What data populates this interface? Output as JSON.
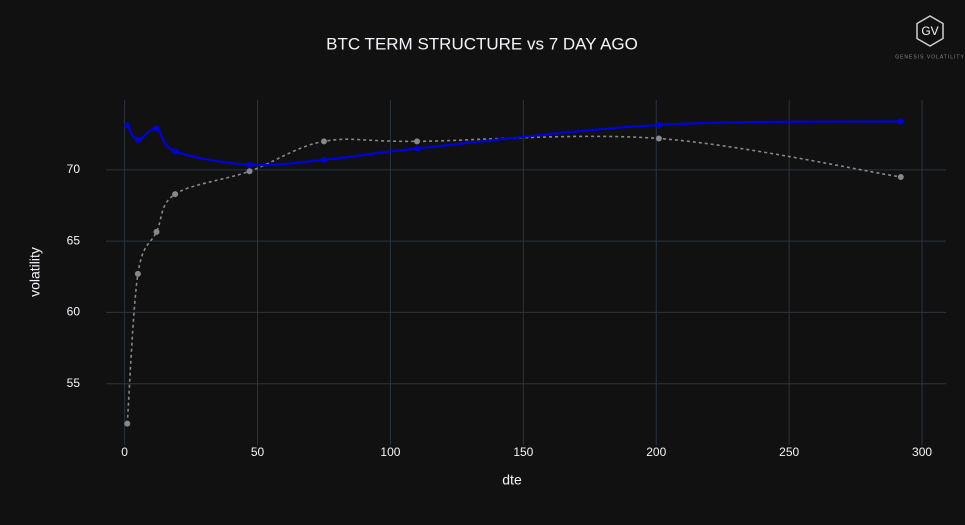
{
  "chart_data": {
    "type": "line",
    "title": "BTC TERM STRUCTURE vs 7 DAY AGO",
    "x_label": "dte",
    "y_label": "volatility",
    "logo": {
      "mark": "GV",
      "text": "GENESIS VOLATILITY"
    },
    "xlim": [
      -7,
      309
    ],
    "ylim": [
      50.7,
      74.9
    ],
    "xticks": [
      0,
      50,
      100,
      150,
      200,
      250,
      300
    ],
    "yticks": [
      55,
      60,
      65,
      70
    ],
    "grid": true,
    "smooth": true,
    "series": [
      {
        "color": "#0000dd",
        "dash": false,
        "x": [
          1,
          5,
          12,
          19,
          47,
          75,
          110,
          201,
          292
        ],
        "values": [
          73.1,
          72.1,
          72.9,
          71.3,
          70.35,
          70.7,
          71.5,
          73.15,
          73.4
        ]
      },
      {
        "color": "#888888",
        "dash": true,
        "x": [
          1,
          5,
          12,
          19,
          47,
          75,
          110,
          201,
          292
        ],
        "values": [
          52.2,
          62.7,
          65.65,
          68.3,
          69.9,
          72.0,
          72.0,
          72.2,
          69.5
        ]
      }
    ]
  }
}
